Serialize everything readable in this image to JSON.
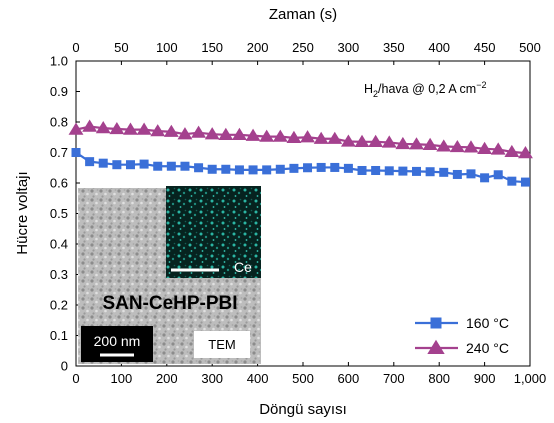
{
  "chart_data": {
    "type": "scatter",
    "xlabel": "Döngü sayısı",
    "ylabel": "Hücre voltajı",
    "top_xlabel": "Zaman (s)",
    "xlim": [
      0,
      1000
    ],
    "ylim": [
      0,
      1.0
    ],
    "top_xlim": [
      0,
      500
    ],
    "x_ticks": [
      "0",
      "100",
      "200",
      "300",
      "400",
      "500",
      "600",
      "700",
      "800",
      "900",
      "1,000"
    ],
    "top_x_ticks": [
      "0",
      "50",
      "100",
      "150",
      "200",
      "250",
      "300",
      "350",
      "400",
      "450",
      "500"
    ],
    "y_ticks": [
      "0",
      "0.1",
      "0.2",
      "0.3",
      "0.4",
      "0.5",
      "0.6",
      "0.7",
      "0.8",
      "0.9",
      "1.0"
    ],
    "grid": false,
    "legend_position": "bottom-right",
    "annotation": {
      "prefix": "H",
      "sub": "2",
      "middle": "/hava @ 0,2 A cm",
      "sup": "−2"
    },
    "series": [
      {
        "name": "160 °C",
        "color": "#3a6fd8",
        "marker": "square",
        "x": [
          0,
          30,
          60,
          90,
          120,
          150,
          180,
          210,
          240,
          270,
          300,
          330,
          360,
          390,
          420,
          450,
          480,
          510,
          540,
          570,
          600,
          630,
          660,
          690,
          720,
          750,
          780,
          810,
          840,
          870,
          900,
          930,
          960,
          990
        ],
        "y": [
          0.7,
          0.67,
          0.665,
          0.66,
          0.66,
          0.662,
          0.655,
          0.655,
          0.655,
          0.65,
          0.645,
          0.645,
          0.643,
          0.643,
          0.643,
          0.645,
          0.648,
          0.65,
          0.651,
          0.651,
          0.648,
          0.641,
          0.641,
          0.64,
          0.639,
          0.638,
          0.637,
          0.635,
          0.628,
          0.63,
          0.617,
          0.627,
          0.606,
          0.603
        ]
      },
      {
        "name": "240 °C",
        "color": "#a4418e",
        "marker": "triangle",
        "x": [
          0,
          30,
          60,
          90,
          120,
          150,
          180,
          210,
          240,
          270,
          300,
          330,
          360,
          390,
          420,
          450,
          480,
          510,
          540,
          570,
          600,
          630,
          660,
          690,
          720,
          750,
          780,
          810,
          840,
          870,
          900,
          930,
          960,
          990
        ],
        "y": [
          0.775,
          0.785,
          0.78,
          0.777,
          0.775,
          0.775,
          0.77,
          0.768,
          0.76,
          0.765,
          0.76,
          0.758,
          0.758,
          0.755,
          0.752,
          0.752,
          0.748,
          0.75,
          0.745,
          0.745,
          0.736,
          0.735,
          0.735,
          0.733,
          0.728,
          0.727,
          0.725,
          0.72,
          0.718,
          0.717,
          0.712,
          0.71,
          0.702,
          0.698
        ]
      }
    ],
    "inset": {
      "label": "SAN-CeHP-PBI",
      "scale_bar": "200 nm",
      "mode": "TEM",
      "map_label": "Ce"
    }
  }
}
